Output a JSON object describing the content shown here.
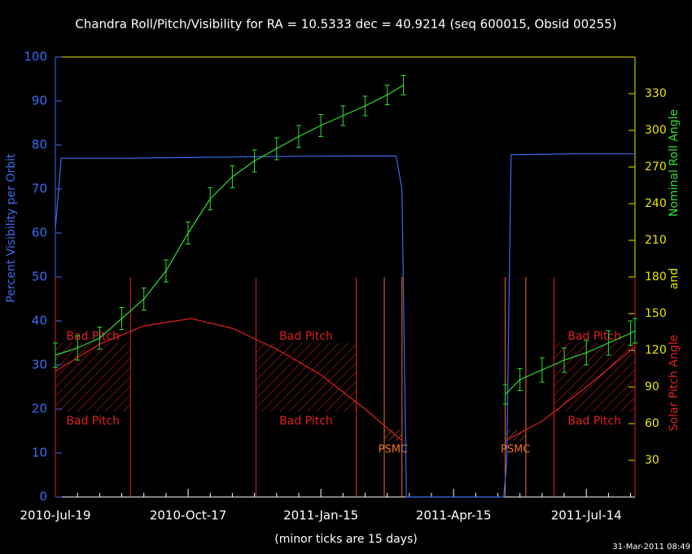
{
  "chart_data": {
    "type": "line",
    "title": "Chandra Roll/Pitch/Visibility for RA = 10.5333 dec = 40.9214 (seq 600015, Obsid 00255)",
    "xlabel": "(minor ticks are 15 days)",
    "ylabel": "Percent Visibility per Orbit",
    "y2labels": [
      {
        "text": "Solar Pitch Angle",
        "color": "#e02020"
      },
      {
        "text": "and",
        "color": "#e8e800"
      },
      {
        "text": "Nominal Roll Angle",
        "color": "#30e030"
      }
    ],
    "timestamp": "31-Mar-2011 08:49",
    "xlim": [
      0,
      393
    ],
    "xticks": [
      {
        "value": 0,
        "label": "2010-Jul-19"
      },
      {
        "value": 90,
        "label": "2010-Oct-17"
      },
      {
        "value": 180,
        "label": "2011-Jan-15"
      },
      {
        "value": 270,
        "label": "2011-Apr-15"
      },
      {
        "value": 360,
        "label": "2011-Jul-14"
      }
    ],
    "xminorticks": [
      15,
      30,
      45,
      60,
      75,
      105,
      120,
      135,
      150,
      165,
      195,
      210,
      225,
      240,
      255,
      285,
      300,
      315,
      330,
      345,
      375,
      390
    ],
    "ylim": [
      0,
      100
    ],
    "yticks": [
      0,
      10,
      20,
      30,
      40,
      50,
      60,
      70,
      80,
      90,
      100
    ],
    "ycolor": "#3a6cf0",
    "y2lim": [
      0,
      360
    ],
    "y2ticks": [
      30,
      60,
      90,
      120,
      150,
      180,
      210,
      240,
      270,
      300,
      330
    ],
    "y2color": "#e8e800",
    "series": [
      {
        "color": "#3a6cf0",
        "x": [
          0,
          4,
          50,
          100,
          150,
          200,
          231,
          235,
          238,
          304,
          306,
          309,
          350,
          393
        ],
        "values": [
          61,
          77,
          77,
          77.2,
          77.4,
          77.5,
          77.5,
          70,
          0,
          0,
          8,
          77.8,
          78,
          78
        ]
      },
      {
        "color": "#30e030",
        "axis": "y2",
        "x": [
          0,
          15,
          30,
          45,
          60,
          75,
          90,
          105,
          120,
          135,
          150,
          165,
          180,
          195,
          210,
          225,
          236,
          270,
          305,
          315,
          330,
          345,
          360,
          375,
          390,
          393
        ],
        "values": [
          116,
          122,
          130,
          146,
          162,
          185,
          216,
          244,
          262,
          275,
          285,
          295,
          304,
          312,
          320,
          329,
          337,
          null,
          84,
          96,
          104,
          112,
          118,
          126,
          134,
          136
        ],
        "errors": [
          10,
          10,
          9,
          9,
          9,
          9,
          9,
          9,
          9,
          9,
          9,
          9,
          9,
          8,
          8,
          8,
          8,
          null,
          8,
          9,
          10,
          10,
          10,
          10,
          10,
          10
        ]
      },
      {
        "color": "#e02020",
        "axis": "y2",
        "x": [
          0,
          30,
          60,
          92,
          120,
          150,
          180,
          210,
          235,
          270,
          305,
          330,
          360,
          393
        ],
        "values": [
          103,
          125,
          140,
          146,
          138,
          121,
          100,
          72,
          46,
          null,
          46,
          62,
          90,
          123
        ]
      }
    ],
    "regions": [
      {
        "label": "Bad Pitch",
        "color": "#e02020",
        "x_ranges": [
          [
            0,
            51
          ],
          [
            136,
            204
          ],
          [
            338,
            393
          ]
        ],
        "y2_range": [
          70,
          126
        ],
        "label_both_sides": true
      },
      {
        "label": "PSMC",
        "color": "#f07020",
        "x_ranges": [
          [
            223,
            235
          ],
          [
            305,
            319
          ]
        ],
        "y2_range": [
          46,
          55
        ],
        "label_both_sides": false
      }
    ]
  }
}
